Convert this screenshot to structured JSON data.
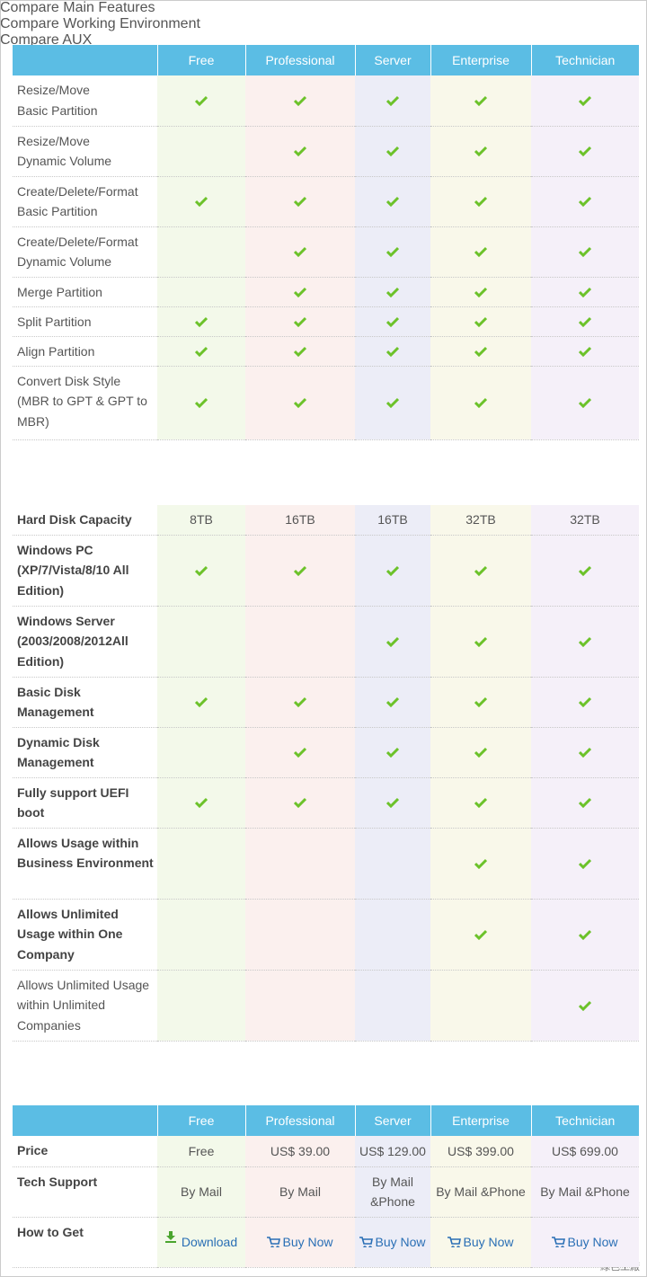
{
  "sections": [
    {
      "title": "Compare Main Features",
      "columns": [
        "Free",
        "Professional",
        "Server",
        "Enterprise",
        "Technician"
      ],
      "rows": [
        {
          "label": "Resize/Move\nBasic Partition",
          "cells": [
            true,
            true,
            true,
            true,
            true
          ]
        },
        {
          "label": "Resize/Move\nDynamic Volume",
          "cells": [
            false,
            true,
            true,
            true,
            true
          ]
        },
        {
          "label": "Create/Delete/Format\nBasic Partition",
          "cells": [
            true,
            true,
            true,
            true,
            true
          ]
        },
        {
          "label": "Create/Delete/Format\nDynamic Volume",
          "cells": [
            false,
            true,
            true,
            true,
            true
          ]
        },
        {
          "label": "Merge Partition",
          "cells": [
            false,
            true,
            true,
            true,
            true
          ]
        },
        {
          "label": "Split Partition",
          "cells": [
            true,
            true,
            true,
            true,
            true
          ]
        },
        {
          "label": "Align Partition",
          "cells": [
            true,
            true,
            true,
            true,
            true
          ]
        },
        {
          "label": "Convert Disk Style\n(MBR to GPT & GPT to\nMBR)",
          "cells": [
            true,
            true,
            true,
            true,
            true
          ]
        }
      ]
    },
    {
      "title": "Compare Working Environment",
      "rows": [
        {
          "label": "Hard Disk Capacity",
          "bold": true,
          "cells": [
            "8TB",
            "16TB",
            "16TB",
            "32TB",
            "32TB"
          ]
        },
        {
          "label": "Windows PC\n(XP/7/Vista/8/10 All\nEdition)",
          "bold": true,
          "cells": [
            true,
            true,
            true,
            true,
            true
          ]
        },
        {
          "label": "Windows Server\n(2003/2008/2012All\nEdition)",
          "bold": true,
          "cells": [
            false,
            false,
            true,
            true,
            true
          ]
        },
        {
          "label": "Basic Disk\nManagement",
          "bold": true,
          "cells": [
            true,
            true,
            true,
            true,
            true
          ]
        },
        {
          "label": "Dynamic Disk\nManagement",
          "bold": true,
          "cells": [
            false,
            true,
            true,
            true,
            true
          ]
        },
        {
          "label": "Fully support UEFI\nboot",
          "bold": true,
          "cells": [
            true,
            true,
            true,
            true,
            true
          ]
        },
        {
          "label": "Allows Usage within\nBusiness Environment",
          "bold": true,
          "cells": [
            false,
            false,
            false,
            true,
            true
          ]
        },
        {
          "label": "Allows Unlimited\nUsage within One\nCompany",
          "bold": true,
          "cells": [
            false,
            false,
            false,
            true,
            true
          ]
        },
        {
          "label": "Allows Unlimited Usage\nwithin Unlimited\nCompanies",
          "bold": false,
          "cells": [
            false,
            false,
            false,
            false,
            true
          ]
        }
      ]
    },
    {
      "title": "Compare AUX",
      "columns": [
        "Free",
        "Professional",
        "Server",
        "Enterprise",
        "Technician"
      ],
      "rows": [
        {
          "label": "Price",
          "bold": true,
          "cells": [
            "Free",
            "US$ 39.00",
            "US$ 129.00",
            "US$ 399.00",
            "US$ 699.00"
          ]
        },
        {
          "label": "Tech Support",
          "bold": true,
          "cells": [
            "By Mail",
            "By Mail",
            "By Mail\n&Phone",
            "By Mail &Phone",
            "By Mail &Phone"
          ]
        },
        {
          "label": "How to Get",
          "bold": true,
          "cells": [
            {
              "icon": "download",
              "text": "Download"
            },
            {
              "icon": "cart",
              "text": "Buy Now"
            },
            {
              "icon": "cart",
              "text": "Buy Now"
            },
            {
              "icon": "cart",
              "text": "Buy Now"
            },
            {
              "icon": "cart",
              "text": "Buy Now"
            }
          ]
        }
      ]
    }
  ],
  "watermark": "綠色工廠"
}
